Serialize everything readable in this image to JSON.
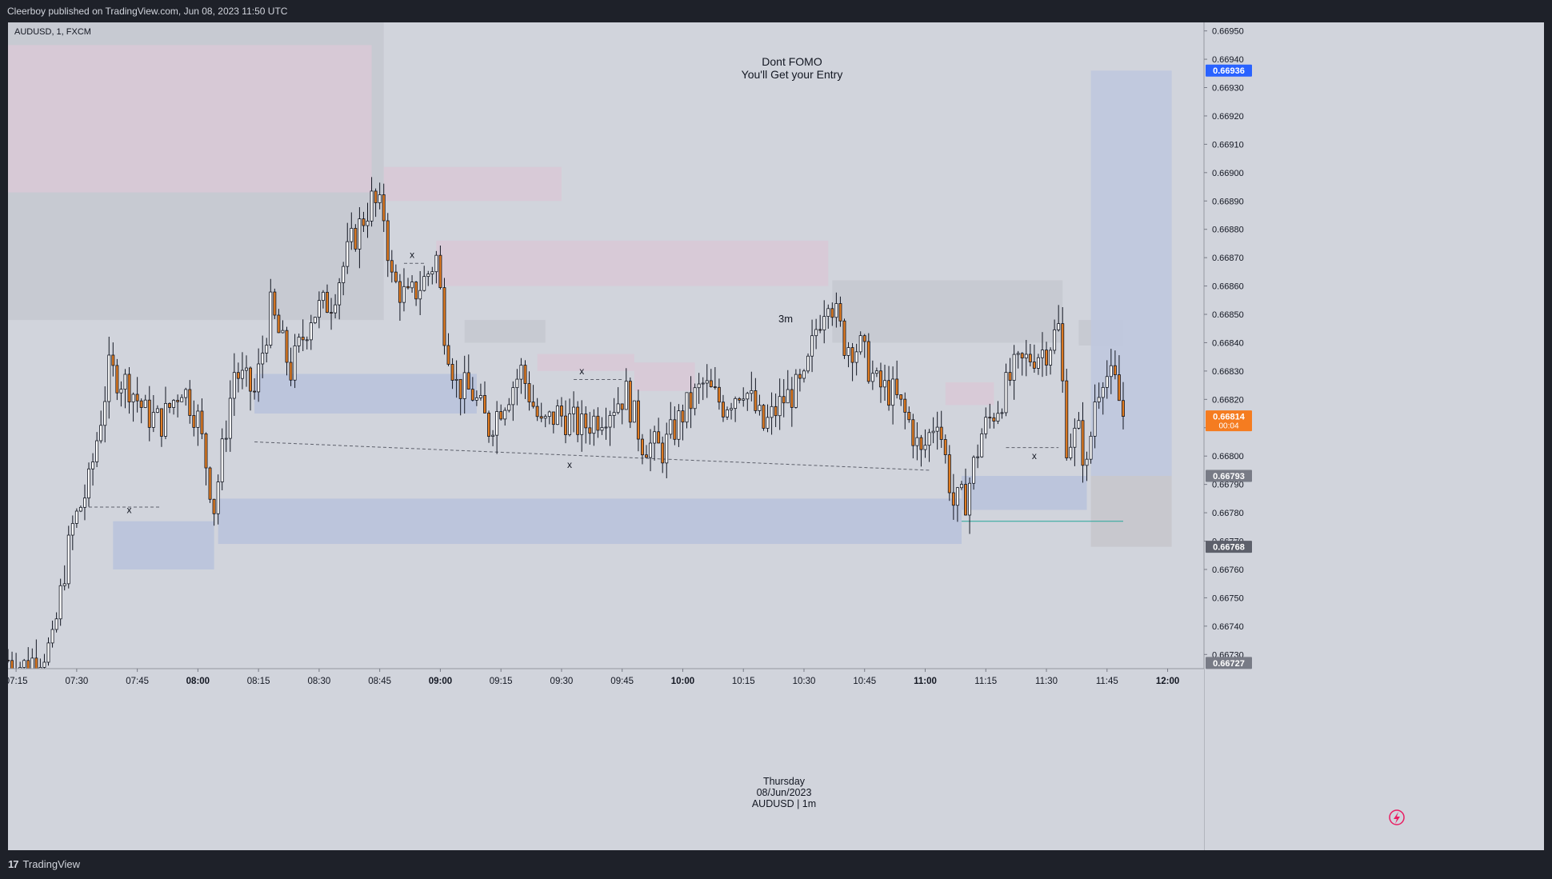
{
  "header": {
    "published": "Cleerboy published on TradingView.com, Jun 08, 2023 11:50 UTC"
  },
  "footer": {
    "brand": "TradingView",
    "logo_text": "17"
  },
  "chart_header": {
    "symbol": "AUDUSD, 1, FXCM"
  },
  "annotations": {
    "title_line1": "Dont FOMO",
    "title_line2": "You'll Get your Entry",
    "zone_label": "3m",
    "x_mark": "x",
    "date_line1": "Thursday",
    "date_line2": "08/Jun/2023",
    "date_line3": "AUDUSD | 1m"
  },
  "colors": {
    "background": "#d1d4dc",
    "bull_candle": "#ffffff",
    "bear_candle": "#e07b21",
    "wick": "#131722",
    "supply_zone": "#d8c9d6",
    "demand_zone": "#b9c3dc",
    "gray_zone": "#c5c8d0",
    "current_price_badge": "#f57c20",
    "top_price_badge": "#2962ff"
  },
  "chart_data": {
    "type": "candlestick",
    "symbol": "AUDUSD",
    "timeframe": "1m",
    "ylim": [
      0.66725,
      0.66953
    ],
    "xlim": [
      "07:13",
      "12:09"
    ],
    "y_ticks": [
      "0.66950",
      "0.66940",
      "0.66930",
      "0.66920",
      "0.66910",
      "0.66900",
      "0.66890",
      "0.66880",
      "0.66870",
      "0.66860",
      "0.66850",
      "0.66840",
      "0.66830",
      "0.66820",
      "0.66810",
      "0.66800",
      "0.66790",
      "0.66780",
      "0.66770",
      "0.66760",
      "0.66750",
      "0.66740",
      "0.66730"
    ],
    "x_ticks": [
      {
        "label": "07:15",
        "bold": false
      },
      {
        "label": "07:30",
        "bold": false
      },
      {
        "label": "07:45",
        "bold": false
      },
      {
        "label": "08:00",
        "bold": true
      },
      {
        "label": "08:15",
        "bold": false
      },
      {
        "label": "08:30",
        "bold": false
      },
      {
        "label": "08:45",
        "bold": false
      },
      {
        "label": "09:00",
        "bold": true
      },
      {
        "label": "09:15",
        "bold": false
      },
      {
        "label": "09:30",
        "bold": false
      },
      {
        "label": "09:45",
        "bold": false
      },
      {
        "label": "10:00",
        "bold": true
      },
      {
        "label": "10:15",
        "bold": false
      },
      {
        "label": "10:30",
        "bold": false
      },
      {
        "label": "10:45",
        "bold": false
      },
      {
        "label": "11:00",
        "bold": true
      },
      {
        "label": "11:15",
        "bold": false
      },
      {
        "label": "11:30",
        "bold": false
      },
      {
        "label": "11:45",
        "bold": false
      },
      {
        "label": "12:00",
        "bold": true
      }
    ],
    "price_badges": [
      {
        "label": "0.66936",
        "value": 0.66936,
        "color": "#2962ff"
      },
      {
        "label": "0.66814",
        "value": 0.66814,
        "color": "#f57c20",
        "sub": "00:04"
      },
      {
        "label": "0.66793",
        "value": 0.66793,
        "color": "#787b86"
      },
      {
        "label": "0.66768",
        "value": 0.66768,
        "color": "#5d606b"
      },
      {
        "label": "0.66727",
        "value": 0.66727,
        "color": "#787b86"
      }
    ],
    "zones": [
      {
        "kind": "gray",
        "t1": "07:13",
        "t2": "08:46",
        "p1": 0.66953,
        "p2": 0.66848
      },
      {
        "kind": "supply",
        "t1": "07:13",
        "t2": "08:43",
        "p1": 0.66945,
        "p2": 0.66893
      },
      {
        "kind": "supply",
        "t1": "08:46",
        "t2": "09:30",
        "p1": 0.66902,
        "p2": 0.6689
      },
      {
        "kind": "supply",
        "t1": "08:59",
        "t2": "10:36",
        "p1": 0.66876,
        "p2": 0.6686
      },
      {
        "kind": "gray",
        "t1": "09:06",
        "t2": "09:26",
        "p1": 0.66848,
        "p2": 0.6684
      },
      {
        "kind": "supply",
        "t1": "09:24",
        "t2": "09:48",
        "p1": 0.66836,
        "p2": 0.6683
      },
      {
        "kind": "supply",
        "t1": "09:48",
        "t2": "10:03",
        "p1": 0.66833,
        "p2": 0.66823
      },
      {
        "kind": "gray",
        "t1": "10:37",
        "t2": "11:34",
        "p1": 0.66862,
        "p2": 0.6684
      },
      {
        "kind": "gray",
        "t1": "11:38",
        "t2": "11:49",
        "p1": 0.66848,
        "p2": 0.66839
      },
      {
        "kind": "supply",
        "t1": "11:05",
        "t2": "11:17",
        "p1": 0.66826,
        "p2": 0.66818
      },
      {
        "kind": "demand",
        "t1": "08:14",
        "t2": "09:09",
        "p1": 0.66829,
        "p2": 0.66815
      },
      {
        "kind": "demand",
        "t1": "07:39",
        "t2": "08:04",
        "p1": 0.66777,
        "p2": 0.6676
      },
      {
        "kind": "demand",
        "t1": "08:05",
        "t2": "11:09",
        "p1": 0.66785,
        "p2": 0.66769
      },
      {
        "kind": "demand",
        "t1": "11:09",
        "t2": "11:40",
        "p1": 0.66793,
        "p2": 0.66781
      },
      {
        "kind": "position_profit",
        "t1": "11:41",
        "t2": "12:01",
        "p1": 0.66936,
        "p2": 0.66793
      },
      {
        "kind": "position_loss",
        "t1": "11:41",
        "t2": "12:01",
        "p1": 0.66793,
        "p2": 0.66768
      }
    ],
    "lines": [
      {
        "style": "dashed",
        "t1": "08:14",
        "p1": 0.66805,
        "t2": "11:01",
        "p2": 0.66795
      },
      {
        "style": "dashed",
        "t1": "07:33",
        "p1": 0.66782,
        "t2": "07:51",
        "p2": 0.66782
      },
      {
        "style": "dashed",
        "t1": "08:51",
        "p1": 0.66868,
        "t2": "08:56",
        "p2": 0.66868
      },
      {
        "style": "dashed",
        "t1": "09:33",
        "p1": 0.66827,
        "t2": "09:45",
        "p2": 0.66827
      },
      {
        "style": "dashed",
        "t1": "11:20",
        "p1": 0.66803,
        "t2": "11:33",
        "p2": 0.66803
      },
      {
        "style": "solid",
        "color": "#26a69a",
        "t1": "11:09",
        "p1": 0.66777,
        "t2": "11:49",
        "p2": 0.66777
      }
    ],
    "x_marks": [
      {
        "t": "07:43",
        "p": 0.66781
      },
      {
        "t": "08:53",
        "p": 0.66871
      },
      {
        "t": "09:35",
        "p": 0.6683
      },
      {
        "t": "09:32",
        "p": 0.66797
      },
      {
        "t": "11:27",
        "p": 0.668
      }
    ],
    "candles_anchor": [
      {
        "t": "07:13",
        "p": 0.66728
      },
      {
        "t": "07:17",
        "p": 0.66726
      },
      {
        "t": "07:24",
        "p": 0.66733
      },
      {
        "t": "07:27",
        "p": 0.6676
      },
      {
        "t": "07:29",
        "p": 0.66775
      },
      {
        "t": "07:33",
        "p": 0.6679
      },
      {
        "t": "07:38",
        "p": 0.6683
      },
      {
        "t": "07:43",
        "p": 0.66825
      },
      {
        "t": "07:47",
        "p": 0.66815
      },
      {
        "t": "07:51",
        "p": 0.66812
      },
      {
        "t": "07:56",
        "p": 0.66825
      },
      {
        "t": "08:00",
        "p": 0.66813
      },
      {
        "t": "08:04",
        "p": 0.66782
      },
      {
        "t": "08:09",
        "p": 0.6683
      },
      {
        "t": "08:14",
        "p": 0.66822
      },
      {
        "t": "08:18",
        "p": 0.66852
      },
      {
        "t": "08:23",
        "p": 0.6683
      },
      {
        "t": "08:28",
        "p": 0.6685
      },
      {
        "t": "08:33",
        "p": 0.66855
      },
      {
        "t": "08:38",
        "p": 0.66875
      },
      {
        "t": "08:43",
        "p": 0.6689
      },
      {
        "t": "08:46",
        "p": 0.66885
      },
      {
        "t": "08:48",
        "p": 0.66862
      },
      {
        "t": "08:52",
        "p": 0.66855
      },
      {
        "t": "08:56",
        "p": 0.66862
      },
      {
        "t": "08:59",
        "p": 0.6687
      },
      {
        "t": "09:01",
        "p": 0.66845
      },
      {
        "t": "09:04",
        "p": 0.66825
      },
      {
        "t": "09:08",
        "p": 0.66822
      },
      {
        "t": "09:12",
        "p": 0.6681
      },
      {
        "t": "09:15",
        "p": 0.66818
      },
      {
        "t": "09:20",
        "p": 0.6683
      },
      {
        "t": "09:25",
        "p": 0.6681
      },
      {
        "t": "09:29",
        "p": 0.66815
      },
      {
        "t": "09:35",
        "p": 0.6681
      },
      {
        "t": "09:40",
        "p": 0.66815
      },
      {
        "t": "09:46",
        "p": 0.66822
      },
      {
        "t": "09:50",
        "p": 0.66805
      },
      {
        "t": "09:55",
        "p": 0.66802
      },
      {
        "t": "10:00",
        "p": 0.66815
      },
      {
        "t": "10:05",
        "p": 0.66825
      },
      {
        "t": "10:10",
        "p": 0.66818
      },
      {
        "t": "10:15",
        "p": 0.66825
      },
      {
        "t": "10:20",
        "p": 0.6681
      },
      {
        "t": "10:25",
        "p": 0.6682
      },
      {
        "t": "10:30",
        "p": 0.66825
      },
      {
        "t": "10:33",
        "p": 0.66845
      },
      {
        "t": "10:36",
        "p": 0.66858
      },
      {
        "t": "10:40",
        "p": 0.6684
      },
      {
        "t": "10:44",
        "p": 0.66838
      },
      {
        "t": "10:48",
        "p": 0.66825
      },
      {
        "t": "10:52",
        "p": 0.66822
      },
      {
        "t": "10:56",
        "p": 0.66812
      },
      {
        "t": "10:59",
        "p": 0.668
      },
      {
        "t": "11:03",
        "p": 0.66815
      },
      {
        "t": "11:07",
        "p": 0.66783
      },
      {
        "t": "11:10",
        "p": 0.66785
      },
      {
        "t": "11:14",
        "p": 0.66808
      },
      {
        "t": "11:18",
        "p": 0.66818
      },
      {
        "t": "11:22",
        "p": 0.6683
      },
      {
        "t": "11:26",
        "p": 0.66835
      },
      {
        "t": "11:30",
        "p": 0.66838
      },
      {
        "t": "11:33",
        "p": 0.66845
      },
      {
        "t": "11:35",
        "p": 0.66805
      },
      {
        "t": "11:38",
        "p": 0.66808
      },
      {
        "t": "11:40",
        "p": 0.66795
      },
      {
        "t": "11:42",
        "p": 0.6682
      },
      {
        "t": "11:44",
        "p": 0.6683
      },
      {
        "t": "11:47",
        "p": 0.66825
      },
      {
        "t": "11:49",
        "p": 0.66814
      }
    ]
  }
}
